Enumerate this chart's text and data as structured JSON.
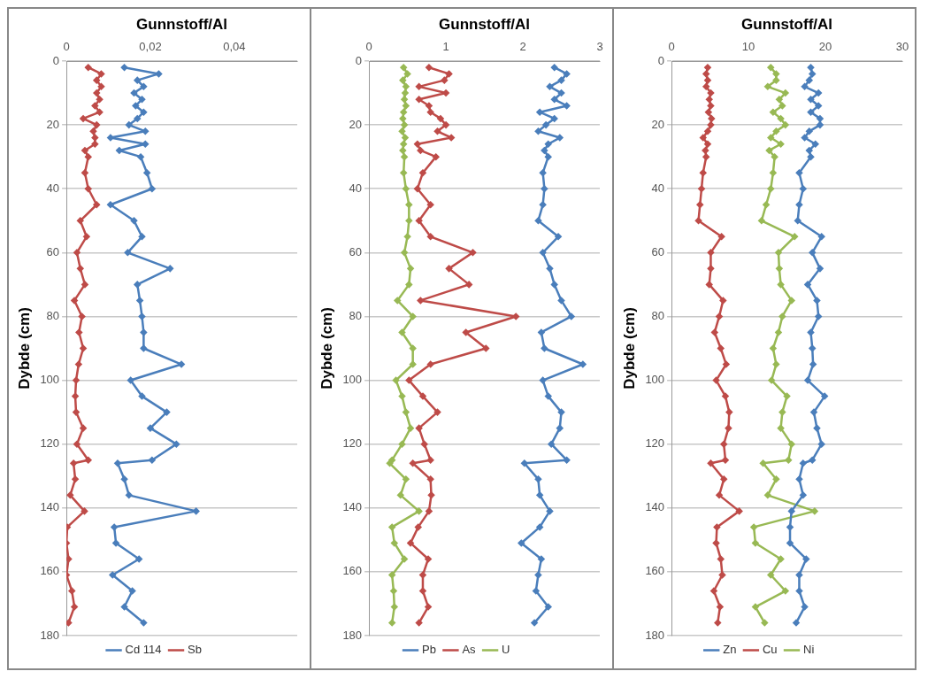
{
  "chart_data": [
    {
      "type": "line",
      "xlabel": "Gunnstoff/Al",
      "ylabel": "Dybde (cm)",
      "xlim": [
        0,
        0.055
      ],
      "xticks": [
        0,
        {
          "value": 0.02,
          "label": "0,02"
        },
        {
          "value": 0.04,
          "label": "0,04"
        }
      ],
      "ylim": [
        180,
        0
      ],
      "yticks": [
        0,
        20,
        40,
        60,
        80,
        100,
        120,
        140,
        160,
        180
      ],
      "grid": "y",
      "legend": "bottom",
      "marker": "diamond",
      "series": [
        {
          "name": "Cd 114",
          "color": "#4a7ebb",
          "x": [
            0.0138,
            0.022,
            0.0169,
            0.0184,
            0.0161,
            0.018,
            0.0165,
            0.0184,
            0.0169,
            0.0149,
            0.0188,
            0.0105,
            0.0188,
            0.0126,
            0.0177,
            0.0192,
            0.0204,
            0.0105,
            0.0161,
            0.018,
            0.0146,
            0.0247,
            0.0169,
            0.0175,
            0.018,
            0.0184,
            0.0184,
            0.0274,
            0.0153,
            0.018,
            0.0239,
            0.02,
            0.0262,
            0.0204,
            0.0122,
            0.0138,
            0.0149,
            0.0309,
            0.0114,
            0.0118,
            0.0173,
            0.011,
            0.0157,
            0.0138,
            0.0184
          ],
          "values": [
            2,
            4,
            6,
            8,
            10,
            12,
            14,
            16,
            18,
            20,
            22,
            24,
            26,
            28,
            30,
            35,
            40,
            45,
            50,
            55,
            60,
            65,
            70,
            75,
            80,
            85,
            90,
            95,
            100,
            105,
            110,
            115,
            120,
            125,
            126,
            131,
            136,
            141,
            146,
            151,
            156,
            161,
            166,
            171,
            176
          ]
        },
        {
          "name": "Sb",
          "color": "#be4b48",
          "x": [
            0.0052,
            0.0083,
            0.0072,
            0.0083,
            0.0072,
            0.0079,
            0.0068,
            0.0079,
            0.004,
            0.0072,
            0.0064,
            0.0068,
            0.0068,
            0.0044,
            0.0052,
            0.0044,
            0.0052,
            0.0072,
            0.0033,
            0.0048,
            0.0025,
            0.0033,
            0.0044,
            0.0019,
            0.0037,
            0.003,
            0.004,
            0.0029,
            0.0023,
            0.0021,
            0.0023,
            0.004,
            0.0025,
            0.0052,
            0.0017,
            0.0021,
            0.0009,
            0.0043,
            0.0002,
            0,
            0.0005,
            0,
            0.0013,
            0.0019,
            0.0005
          ],
          "values": [
            2,
            4,
            6,
            8,
            10,
            12,
            14,
            16,
            18,
            20,
            22,
            24,
            26,
            28,
            30,
            35,
            40,
            45,
            50,
            55,
            60,
            65,
            70,
            75,
            80,
            85,
            90,
            95,
            100,
            105,
            110,
            115,
            120,
            125,
            126,
            131,
            136,
            141,
            146,
            151,
            156,
            161,
            166,
            171,
            176
          ]
        }
      ]
    },
    {
      "type": "line",
      "xlabel": "Gunnstoff/Al",
      "ylabel": "Dybde (cm)",
      "xlim": [
        0,
        3
      ],
      "xticks": [
        0,
        1,
        2,
        3
      ],
      "ylim": [
        180,
        0
      ],
      "yticks": [
        0,
        20,
        40,
        60,
        80,
        100,
        120,
        140,
        160,
        180
      ],
      "grid": "y",
      "legend": "bottom",
      "marker": "diamond",
      "series": [
        {
          "name": "Pb",
          "color": "#4a7ebb",
          "x": [
            2.41,
            2.57,
            2.5,
            2.35,
            2.5,
            2.41,
            2.57,
            2.22,
            2.41,
            2.3,
            2.2,
            2.48,
            2.33,
            2.28,
            2.33,
            2.26,
            2.28,
            2.26,
            2.2,
            2.46,
            2.26,
            2.35,
            2.41,
            2.5,
            2.63,
            2.24,
            2.28,
            2.78,
            2.26,
            2.33,
            2.5,
            2.48,
            2.37,
            2.57,
            2.02,
            2.2,
            2.22,
            2.35,
            2.22,
            1.98,
            2.24,
            2.2,
            2.17,
            2.33,
            2.15
          ],
          "values": [
            2,
            4,
            6,
            8,
            10,
            12,
            14,
            16,
            18,
            20,
            22,
            24,
            26,
            28,
            30,
            35,
            40,
            45,
            50,
            55,
            60,
            65,
            70,
            75,
            80,
            85,
            90,
            95,
            100,
            105,
            110,
            115,
            120,
            125,
            126,
            131,
            136,
            141,
            146,
            151,
            156,
            161,
            166,
            171,
            176
          ]
        },
        {
          "name": "As",
          "color": "#be4b48",
          "x": [
            0.78,
            1.04,
            0.98,
            0.65,
            1.0,
            0.65,
            0.78,
            0.8,
            0.93,
            1.0,
            0.89,
            1.07,
            0.63,
            0.67,
            0.87,
            0.7,
            0.63,
            0.8,
            0.65,
            0.8,
            1.35,
            1.04,
            1.3,
            0.67,
            1.91,
            1.26,
            1.52,
            0.8,
            0.52,
            0.7,
            0.89,
            0.65,
            0.72,
            0.8,
            0.57,
            0.8,
            0.81,
            0.78,
            0.64,
            0.54,
            0.77,
            0.7,
            0.7,
            0.77,
            0.65
          ],
          "values": [
            2,
            4,
            6,
            8,
            10,
            12,
            14,
            16,
            18,
            20,
            22,
            24,
            26,
            28,
            30,
            35,
            40,
            45,
            50,
            55,
            60,
            65,
            70,
            75,
            80,
            85,
            90,
            95,
            100,
            105,
            110,
            115,
            120,
            125,
            126,
            131,
            136,
            141,
            146,
            151,
            156,
            161,
            166,
            171,
            176
          ]
        },
        {
          "name": "U",
          "color": "#98b954",
          "x": [
            0.45,
            0.5,
            0.44,
            0.48,
            0.47,
            0.46,
            0.48,
            0.45,
            0.44,
            0.46,
            0.43,
            0.47,
            0.45,
            0.44,
            0.46,
            0.45,
            0.48,
            0.52,
            0.52,
            0.5,
            0.46,
            0.54,
            0.52,
            0.37,
            0.57,
            0.43,
            0.57,
            0.57,
            0.35,
            0.43,
            0.48,
            0.54,
            0.43,
            0.3,
            0.27,
            0.48,
            0.41,
            0.65,
            0.3,
            0.33,
            0.46,
            0.3,
            0.32,
            0.33,
            0.3
          ],
          "values": [
            2,
            4,
            6,
            8,
            10,
            12,
            14,
            16,
            18,
            20,
            22,
            24,
            26,
            28,
            30,
            35,
            40,
            45,
            50,
            55,
            60,
            65,
            70,
            75,
            80,
            85,
            90,
            95,
            100,
            105,
            110,
            115,
            120,
            125,
            126,
            131,
            136,
            141,
            146,
            151,
            156,
            161,
            166,
            171,
            176
          ]
        }
      ]
    },
    {
      "type": "line",
      "xlabel": "Gunnstoff/Al",
      "ylabel": "Dybde (cm)",
      "xlim": [
        0,
        30
      ],
      "xticks": [
        0,
        10,
        20,
        30
      ],
      "ylim": [
        180,
        0
      ],
      "yticks": [
        0,
        20,
        40,
        60,
        80,
        100,
        120,
        140,
        160,
        180
      ],
      "grid": "y",
      "legend": "bottom",
      "marker": "diamond",
      "series": [
        {
          "name": "Zn",
          "color": "#4a7ebb",
          "x": [
            18.1,
            18.3,
            17.9,
            17.3,
            19.1,
            18.1,
            19.1,
            18.1,
            19.3,
            19.3,
            17.9,
            17.3,
            18.7,
            17.9,
            18.1,
            16.6,
            17.1,
            16.6,
            16.4,
            19.5,
            18.3,
            19.3,
            17.7,
            18.9,
            19.1,
            18.1,
            18.3,
            18.4,
            17.7,
            19.9,
            18.5,
            18.9,
            19.5,
            18.3,
            17.1,
            16.6,
            17.1,
            15.6,
            15.4,
            15.4,
            17.5,
            16.6,
            16.6,
            17.3,
            16.2
          ],
          "values": [
            2,
            4,
            6,
            8,
            10,
            12,
            14,
            16,
            18,
            20,
            22,
            24,
            26,
            28,
            30,
            35,
            40,
            45,
            50,
            55,
            60,
            65,
            70,
            75,
            80,
            85,
            90,
            95,
            100,
            105,
            110,
            115,
            120,
            125,
            126,
            131,
            136,
            141,
            146,
            151,
            156,
            161,
            166,
            171,
            176
          ]
        },
        {
          "name": "Cu",
          "color": "#be4b48",
          "x": [
            4.7,
            4.5,
            4.7,
            4.5,
            5.1,
            4.9,
            5.1,
            4.8,
            5.2,
            5.1,
            4.7,
            4.1,
            4.7,
            4.4,
            4.5,
            4.1,
            3.9,
            3.7,
            3.5,
            6.5,
            5.1,
            5.1,
            4.9,
            6.7,
            6.2,
            5.6,
            6.4,
            7.1,
            5.8,
            7.0,
            7.5,
            7.4,
            6.8,
            7.0,
            5.1,
            6.8,
            6.2,
            8.8,
            5.9,
            5.8,
            6.4,
            6.6,
            5.5,
            6.3,
            6.0
          ],
          "values": [
            2,
            4,
            6,
            8,
            10,
            12,
            14,
            16,
            18,
            20,
            22,
            24,
            26,
            28,
            30,
            35,
            40,
            45,
            50,
            55,
            60,
            65,
            70,
            75,
            80,
            85,
            90,
            95,
            100,
            105,
            110,
            115,
            120,
            125,
            126,
            131,
            136,
            141,
            146,
            151,
            156,
            161,
            166,
            171,
            176
          ]
        },
        {
          "name": "Ni",
          "color": "#98b954",
          "x": [
            12.9,
            13.6,
            13.6,
            12.5,
            14.8,
            14.0,
            14.4,
            13.2,
            14.2,
            14.8,
            13.6,
            12.9,
            14.2,
            12.7,
            13.4,
            13.2,
            12.9,
            12.3,
            11.7,
            16.0,
            13.9,
            14.0,
            14.2,
            15.6,
            14.4,
            13.9,
            13.2,
            13.6,
            13.0,
            15.0,
            14.4,
            14.2,
            15.6,
            15.2,
            11.9,
            13.6,
            12.5,
            18.6,
            10.7,
            10.9,
            14.2,
            12.9,
            14.8,
            10.9,
            12.1
          ],
          "values": [
            2,
            4,
            6,
            8,
            10,
            12,
            14,
            16,
            18,
            20,
            22,
            24,
            26,
            28,
            30,
            35,
            40,
            45,
            50,
            55,
            60,
            65,
            70,
            75,
            80,
            85,
            90,
            95,
            100,
            105,
            110,
            115,
            120,
            125,
            126,
            131,
            136,
            141,
            146,
            151,
            156,
            161,
            166,
            171,
            176
          ]
        }
      ]
    }
  ]
}
